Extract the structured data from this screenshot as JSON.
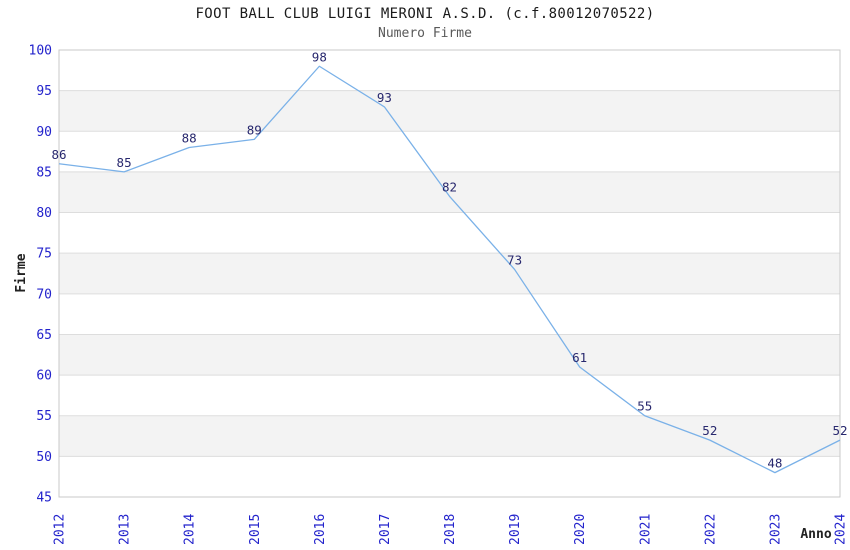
{
  "title": "FOOT BALL CLUB LUIGI MERONI A.S.D. (c.f.80012070522)",
  "subtitle": "Numero Firme",
  "chart_data": {
    "type": "line",
    "title": "FOOT BALL CLUB LUIGI MERONI A.S.D. (c.f.80012070522)",
    "subtitle": "Numero Firme",
    "categories": [
      "2012",
      "2013",
      "2014",
      "2015",
      "2016",
      "2017",
      "2018",
      "2019",
      "2020",
      "2021",
      "2022",
      "2023",
      "2024"
    ],
    "values": [
      86,
      85,
      88,
      89,
      98,
      93,
      82,
      73,
      61,
      55,
      52,
      48,
      52
    ],
    "xlabel": "Anno",
    "ylabel": "Firme",
    "ylim": [
      45,
      100
    ],
    "ytick_step": 5,
    "grid": true,
    "banded_rows": true,
    "data_labels": true,
    "legend": "none",
    "colors": {
      "line": "#7AB1E8",
      "data_label": "#28286E",
      "tick_label": "#2323CC",
      "band_fill": "#F3F3F3",
      "gridline": "#DDDDDD",
      "plot_border": "#C9C9C9",
      "title": "#1A1A1A",
      "subtitle": "#595959",
      "axis_title": "#222222"
    }
  }
}
